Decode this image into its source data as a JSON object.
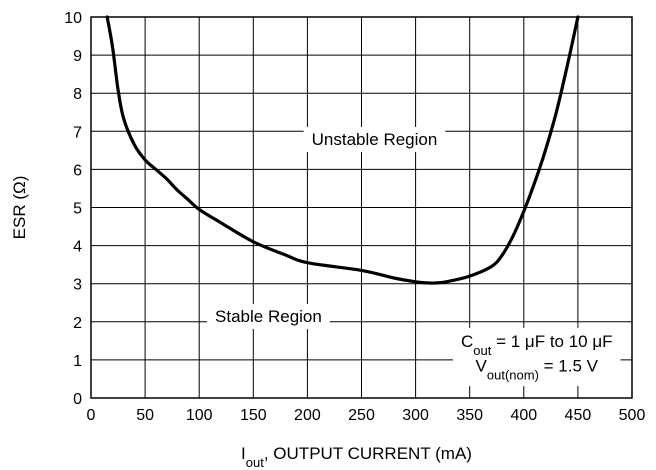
{
  "chart_data": {
    "type": "line",
    "xlabel": {
      "main": "I",
      "sub": "out",
      "rest": ", OUTPUT CURRENT (mA)"
    },
    "ylabel": "ESR (Ω)",
    "xlim": [
      0,
      500
    ],
    "ylim": [
      0,
      10
    ],
    "x_ticks": [
      0,
      50,
      100,
      150,
      200,
      250,
      300,
      350,
      400,
      450,
      500
    ],
    "y_ticks": [
      0,
      1,
      2,
      3,
      4,
      5,
      6,
      7,
      8,
      9,
      10
    ],
    "grid": true,
    "series": [
      {
        "x": [
          15,
          20,
          25,
          30,
          40,
          50,
          60,
          70,
          80,
          90,
          100,
          120,
          150,
          180,
          200,
          250,
          280,
          300,
          310,
          320,
          330,
          350,
          370,
          380,
          390,
          400,
          410,
          420,
          430,
          440,
          450
        ],
        "y": [
          10.0,
          9.2,
          8.1,
          7.35,
          6.65,
          6.25,
          6.0,
          5.75,
          5.45,
          5.2,
          4.95,
          4.6,
          4.1,
          3.75,
          3.55,
          3.35,
          3.15,
          3.05,
          3.02,
          3.02,
          3.06,
          3.2,
          3.45,
          3.75,
          4.25,
          4.9,
          5.65,
          6.5,
          7.5,
          8.7,
          10.0
        ]
      }
    ],
    "annotations": {
      "unstable": "Unstable Region",
      "stable": "Stable Region",
      "cout": {
        "main": "C",
        "sub": "out",
        "rest": " = 1 μF to 10 μF"
      },
      "vout": {
        "main": "V",
        "sub": "out(nom)",
        "rest": " = 1.5 V"
      }
    }
  }
}
